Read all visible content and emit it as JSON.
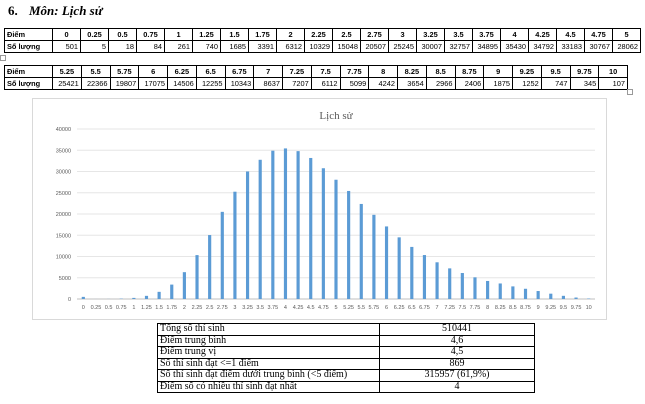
{
  "heading": {
    "number": "6.",
    "title": "Môn: Lịch sử"
  },
  "table1": {
    "row_label_score": "Điểm",
    "row_label_count": "Số lượng",
    "scores": [
      "0",
      "0.25",
      "0.5",
      "0.75",
      "1",
      "1.25",
      "1.5",
      "1.75",
      "2",
      "2.25",
      "2.5",
      "2.75",
      "3",
      "3.25",
      "3.5",
      "3.75",
      "4",
      "4.25",
      "4.5",
      "4.75",
      "5"
    ],
    "counts": [
      "501",
      "5",
      "18",
      "84",
      "261",
      "740",
      "1685",
      "3391",
      "6312",
      "10329",
      "15048",
      "20507",
      "25245",
      "30007",
      "32757",
      "34895",
      "35430",
      "34792",
      "33183",
      "30767",
      "28062"
    ]
  },
  "table2": {
    "row_label_score": "Điểm",
    "row_label_count": "Số lượng",
    "scores": [
      "5.25",
      "5.5",
      "5.75",
      "6",
      "6.25",
      "6.5",
      "6.75",
      "7",
      "7.25",
      "7.5",
      "7.75",
      "8",
      "8.25",
      "8.5",
      "8.75",
      "9",
      "9.25",
      "9.5",
      "9.75",
      "10"
    ],
    "counts": [
      "25421",
      "22366",
      "19807",
      "17075",
      "14506",
      "12255",
      "10343",
      "8637",
      "7207",
      "6112",
      "5099",
      "4242",
      "3654",
      "2966",
      "2406",
      "1875",
      "1252",
      "747",
      "345",
      "107"
    ]
  },
  "chart_data": {
    "type": "bar",
    "title": "Lịch sử",
    "xlabel": "",
    "ylabel": "",
    "ylim": [
      0,
      40000
    ],
    "yticks": [
      "0",
      "5000",
      "10000",
      "15000",
      "20000",
      "25000",
      "30000",
      "35000",
      "40000"
    ],
    "categories": [
      "0",
      "0.25",
      "0.5",
      "0.75",
      "1",
      "1.25",
      "1.5",
      "1.75",
      "2",
      "2.25",
      "2.5",
      "2.75",
      "3",
      "3.25",
      "3.5",
      "3.75",
      "4",
      "4.25",
      "4.5",
      "4.75",
      "5",
      "5.25",
      "5.5",
      "5.75",
      "6",
      "6.25",
      "6.5",
      "6.75",
      "7",
      "7.25",
      "7.5",
      "7.75",
      "8",
      "8.25",
      "8.5",
      "8.75",
      "9",
      "9.25",
      "9.5",
      "9.75",
      "10"
    ],
    "values": [
      501,
      5,
      18,
      84,
      261,
      740,
      1685,
      3391,
      6312,
      10329,
      15048,
      20507,
      25245,
      30007,
      32757,
      34895,
      35430,
      34792,
      33183,
      30767,
      28062,
      25421,
      22366,
      19807,
      17075,
      14506,
      12255,
      10343,
      8637,
      7207,
      6112,
      5099,
      4242,
      3654,
      2966,
      2406,
      1875,
      1252,
      747,
      345,
      107
    ],
    "bar_color": "#5b9bd5",
    "grid": true
  },
  "stats": {
    "rows": [
      {
        "label": "Tổng số thí sinh",
        "value": "510441"
      },
      {
        "label": "Điểm trung bình",
        "value": "4,6"
      },
      {
        "label": "Điểm trung vị",
        "value": "4,5"
      },
      {
        "label": "Số thí sinh đạt <=1 điểm",
        "value": "869"
      },
      {
        "label": "Số thí sinh đạt điểm dưới trung bình (<5 điểm)",
        "value": "315957 (61,9%)"
      },
      {
        "label": "Điểm số có nhiều thí sinh đạt nhất",
        "value": "4"
      }
    ]
  }
}
